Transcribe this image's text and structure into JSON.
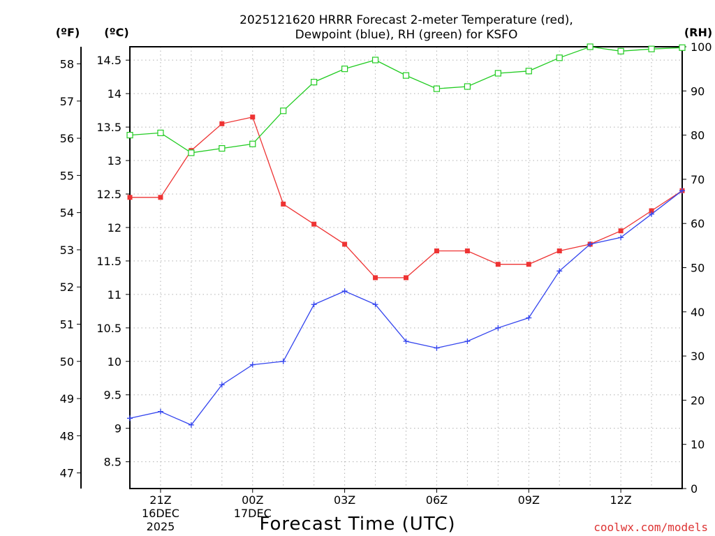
{
  "chart_data": {
    "type": "line",
    "title_line1": "2025121620 HRRR Forecast 2-meter Temperature (red),",
    "title_line2": "Dewpoint (blue), RH (green) for KSFO",
    "xlabel": "Forecast Time (UTC)",
    "credit": "coolwx.com/models",
    "units": {
      "fahrenheit": "(ºF)",
      "celsius": "(ºC)",
      "rh": "(RH)"
    },
    "x_hours": [
      20,
      21,
      22,
      23,
      24,
      25,
      26,
      27,
      28,
      29,
      30,
      31,
      32,
      33,
      34,
      35,
      36,
      37,
      38
    ],
    "x_ticks": [
      {
        "hour": 21,
        "lines": [
          "21Z",
          "16DEC",
          "2025"
        ]
      },
      {
        "hour": 24,
        "lines": [
          "00Z",
          "17DEC"
        ]
      },
      {
        "hour": 27,
        "lines": [
          "03Z"
        ]
      },
      {
        "hour": 30,
        "lines": [
          "06Z"
        ]
      },
      {
        "hour": 33,
        "lines": [
          "09Z"
        ]
      },
      {
        "hour": 36,
        "lines": [
          "12Z"
        ]
      }
    ],
    "xlim": [
      20,
      38
    ],
    "ylim_c": [
      8.1,
      14.7
    ],
    "ylim_rh": [
      0,
      100
    ],
    "y_ticks_c": [
      "8.5",
      "9",
      "9.5",
      "10",
      "10.5",
      "11",
      "11.5",
      "12",
      "12.5",
      "13",
      "13.5",
      "14",
      "14.5"
    ],
    "y_ticks_f": [
      "47",
      "48",
      "49",
      "50",
      "51",
      "52",
      "53",
      "54",
      "55",
      "56",
      "57",
      "58"
    ],
    "y_ticks_rh": [
      "0",
      "10",
      "20",
      "30",
      "40",
      "50",
      "60",
      "70",
      "80",
      "90",
      "100"
    ],
    "series": [
      {
        "name": "Temperature",
        "color": "#ee3333",
        "marker": "filled-square",
        "axis": "celsius",
        "values": [
          12.45,
          12.45,
          13.15,
          13.55,
          13.65,
          12.35,
          12.05,
          11.75,
          11.25,
          11.25,
          11.65,
          11.65,
          11.45,
          11.45,
          11.65,
          11.75,
          11.95,
          12.25,
          12.55
        ]
      },
      {
        "name": "Dewpoint",
        "color": "#3344ee",
        "marker": "plus",
        "axis": "celsius",
        "values": [
          9.15,
          9.25,
          9.05,
          9.65,
          9.95,
          10.0,
          10.85,
          11.05,
          10.85,
          10.3,
          10.2,
          10.3,
          10.5,
          10.65,
          11.35,
          11.75,
          11.85,
          12.2,
          12.55
        ]
      },
      {
        "name": "RH",
        "color": "#22cc22",
        "marker": "open-square",
        "axis": "rh",
        "values": [
          80,
          80.5,
          76,
          77,
          78,
          85.5,
          92,
          95,
          97,
          93.5,
          90.5,
          91,
          94,
          94.5,
          97.5,
          100,
          99,
          99.5,
          99.8
        ]
      }
    ]
  }
}
